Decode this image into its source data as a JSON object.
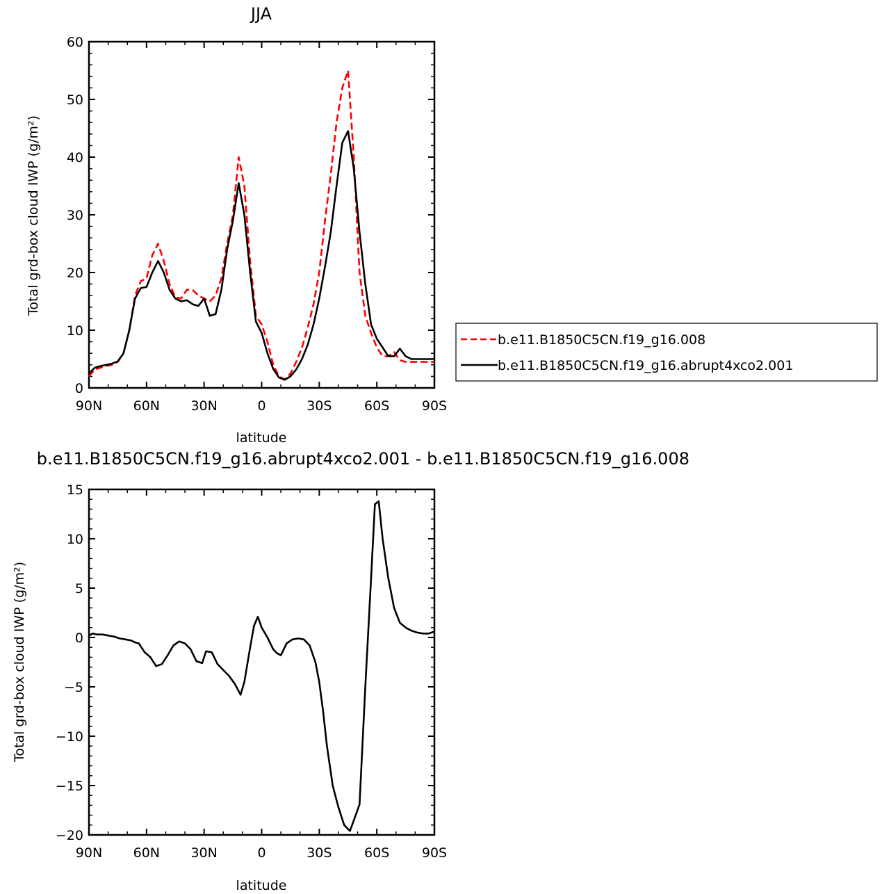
{
  "chart_data": [
    {
      "type": "line",
      "title": "JJA",
      "xlabel": "latitude",
      "ylabel": "Total grd-box cloud IWP (g/m²)",
      "xlim": [
        -90,
        90
      ],
      "ylim": [
        0,
        60
      ],
      "x_ticks": [
        -90,
        -60,
        -30,
        0,
        30,
        60,
        90
      ],
      "x_tick_labels": [
        "90N",
        "60N",
        "30N",
        "0",
        "30S",
        "60S",
        "90S"
      ],
      "y_ticks": [
        0,
        10,
        20,
        30,
        40,
        50,
        60
      ],
      "y_tick_labels": [
        "0",
        "10",
        "20",
        "30",
        "40",
        "50",
        "60"
      ],
      "legend_position": "right",
      "series": [
        {
          "name": "b.e11.B1850C5CN.f19_g16.008",
          "color": "#ff0000",
          "dash": "dashed",
          "x": [
            -90,
            -87,
            -84,
            -81,
            -78,
            -75,
            -72,
            -69,
            -66,
            -63,
            -60,
            -57,
            -54,
            -51,
            -48,
            -45,
            -42,
            -39,
            -36,
            -33,
            -30,
            -27,
            -24,
            -21,
            -18,
            -15,
            -12,
            -9,
            -6,
            -3,
            0,
            3,
            6,
            9,
            12,
            15,
            18,
            21,
            24,
            27,
            30,
            33,
            36,
            39,
            42,
            45,
            48,
            51,
            54,
            57,
            60,
            63,
            66,
            69,
            72,
            75,
            78,
            81,
            84,
            87,
            90
          ],
          "y": [
            2,
            3.2,
            3.5,
            3.8,
            4.0,
            4.5,
            6,
            10,
            16,
            18.5,
            19,
            23,
            25,
            22,
            18,
            15.7,
            15.5,
            17,
            17,
            16,
            15.5,
            15,
            16,
            19,
            25,
            30,
            40,
            35,
            22,
            12.5,
            11,
            8,
            4,
            2,
            1.5,
            2.5,
            4.5,
            7,
            10.5,
            14.5,
            20,
            29,
            37,
            46,
            52,
            55,
            40,
            20,
            12.5,
            9.5,
            7,
            5.5,
            5.5,
            6.2,
            4.8,
            4.5,
            4.5,
            4.5,
            4.5,
            4.5,
            4.5
          ],
          "note_x_order": "index"
        },
        {
          "name": "b.e11.B1850C5CN.f19_g16.abrupt4xco2.001",
          "color": "#000000",
          "dash": "solid",
          "x": [
            -90,
            -87,
            -84,
            -81,
            -78,
            -75,
            -72,
            -69,
            -66,
            -63,
            -60,
            -57,
            -54,
            -51,
            -48,
            -45,
            -42,
            -39,
            -36,
            -33,
            -30,
            -27,
            -24,
            -21,
            -18,
            -15,
            -12,
            -9,
            -6,
            -3,
            0,
            3,
            6,
            9,
            12,
            15,
            18,
            21,
            24,
            27,
            30,
            33,
            36,
            39,
            42,
            45,
            48,
            51,
            54,
            57,
            60,
            63,
            66,
            69,
            72,
            75,
            78,
            81,
            84,
            87,
            90
          ],
          "y": [
            2.5,
            3.5,
            3.8,
            4.0,
            4.2,
            4.6,
            6,
            10,
            15.5,
            17.3,
            17.5,
            20,
            22,
            20,
            17,
            15.5,
            15,
            15.2,
            14.5,
            14.2,
            15.5,
            12.5,
            12.8,
            17,
            24,
            29,
            35.5,
            30,
            20,
            11.5,
            9.5,
            6,
            3.3,
            1.8,
            1.4,
            2.0,
            3.2,
            5,
            7.5,
            11,
            15.5,
            21,
            27,
            35,
            42.5,
            44.5,
            38,
            27,
            18,
            11,
            8.5,
            7,
            5.5,
            5.5,
            6.8,
            5.5,
            5.0,
            5.0,
            5.0,
            5.0,
            5.0
          ],
          "note_x_order": "index"
        }
      ]
    },
    {
      "type": "line",
      "title": "b.e11.B1850C5CN.f19_g16.abrupt4xco2.001 - b.e11.B1850C5CN.f19_g16.008",
      "xlabel": "latitude",
      "ylabel": "Total grd-box cloud IWP (g/m²)",
      "xlim": [
        -90,
        90
      ],
      "ylim": [
        -20,
        15
      ],
      "x_ticks": [
        -90,
        -60,
        -30,
        0,
        30,
        60,
        90
      ],
      "x_tick_labels": [
        "90N",
        "60N",
        "30N",
        "0",
        "30S",
        "60S",
        "90S"
      ],
      "y_ticks": [
        -20,
        -15,
        -10,
        -5,
        0,
        5,
        10,
        15
      ],
      "y_tick_labels": [
        "−20",
        "−15",
        "−10",
        "−5",
        "0",
        "5",
        "10",
        "15"
      ],
      "series": [
        {
          "color": "#000000",
          "dash": "solid",
          "x": [
            -90,
            -88,
            -86,
            -83,
            -80,
            -77,
            -74,
            -71,
            -68,
            -66,
            -64,
            -61,
            -58,
            -55,
            -52,
            -49,
            -46,
            -43,
            -40,
            -37,
            -34,
            -31,
            -29,
            -26,
            -23,
            -20,
            -17,
            -14,
            -11,
            -9,
            -6,
            -4,
            -2,
            0,
            3,
            6,
            8,
            10,
            13,
            16,
            19,
            22,
            25,
            28,
            30,
            32,
            34,
            37,
            40,
            43,
            46,
            49,
            51,
            54,
            57,
            59,
            61,
            63,
            66,
            69,
            72,
            75,
            78,
            81,
            84,
            87,
            90
          ],
          "y": [
            0.2,
            0.4,
            0.3,
            0.3,
            0.2,
            0.1,
            -0.1,
            -0.2,
            -0.3,
            -0.5,
            -0.6,
            -1.5,
            -2.0,
            -2.9,
            -2.7,
            -1.8,
            -0.8,
            -0.4,
            -0.6,
            -1.2,
            -2.4,
            -2.6,
            -1.4,
            -1.5,
            -2.7,
            -3.3,
            -3.9,
            -4.7,
            -5.8,
            -4.5,
            -1.0,
            1.2,
            2.1,
            1.0,
            0.0,
            -1.2,
            -1.6,
            -1.8,
            -0.6,
            -0.2,
            -0.1,
            -0.2,
            -0.8,
            -2.5,
            -4.5,
            -7.5,
            -11.0,
            -15.0,
            -17.2,
            -19.0,
            -19.6,
            -18.0,
            -16.9,
            -5.0,
            6.0,
            13.5,
            13.8,
            10.0,
            6.0,
            3.0,
            1.5,
            1.0,
            0.7,
            0.5,
            0.4,
            0.4,
            0.6
          ]
        }
      ]
    }
  ]
}
